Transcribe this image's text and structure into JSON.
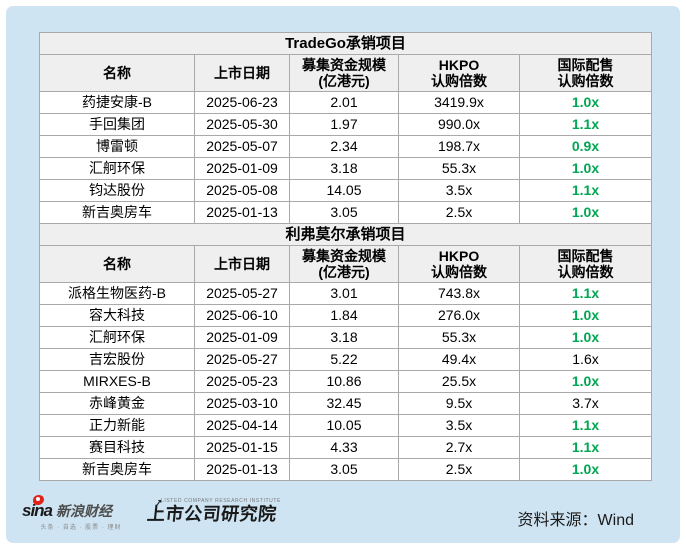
{
  "colors": {
    "panel_background": "#cfe4f2",
    "header_background": "#efefef",
    "border": "#a9a9a9",
    "highlight_green": "#00a651",
    "text": "#000000"
  },
  "chart_data": [
    {
      "type": "table",
      "title": "TradeGo承销项目",
      "columns": [
        "名称",
        "上市日期",
        "募集资金规模\n(亿港元)",
        "HKPO\n认购倍数",
        "国际配售\n认购倍数"
      ],
      "rows": [
        {
          "name": "药捷安康-B",
          "date": "2025-06-23",
          "funds": "2.01",
          "hkpo": "3419.9x",
          "intl": "1.0x",
          "green": true
        },
        {
          "name": "手回集团",
          "date": "2025-05-30",
          "funds": "1.97",
          "hkpo": "990.0x",
          "intl": "1.1x",
          "green": true
        },
        {
          "name": "博雷顿",
          "date": "2025-05-07",
          "funds": "2.34",
          "hkpo": "198.7x",
          "intl": "0.9x",
          "green": true
        },
        {
          "name": "汇舸环保",
          "date": "2025-01-09",
          "funds": "3.18",
          "hkpo": "55.3x",
          "intl": "1.0x",
          "green": true
        },
        {
          "name": "钧达股份",
          "date": "2025-05-08",
          "funds": "14.05",
          "hkpo": "3.5x",
          "intl": "1.1x",
          "green": true
        },
        {
          "name": "新吉奥房车",
          "date": "2025-01-13",
          "funds": "3.05",
          "hkpo": "2.5x",
          "intl": "1.0x",
          "green": true
        }
      ]
    },
    {
      "type": "table",
      "title": "利弗莫尔承销项目",
      "columns": [
        "名称",
        "上市日期",
        "募集资金规模\n(亿港元)",
        "HKPO\n认购倍数",
        "国际配售\n认购倍数"
      ],
      "rows": [
        {
          "name": "派格生物医药-B",
          "date": "2025-05-27",
          "funds": "3.01",
          "hkpo": "743.8x",
          "intl": "1.1x",
          "green": true
        },
        {
          "name": "容大科技",
          "date": "2025-06-10",
          "funds": "1.84",
          "hkpo": "276.0x",
          "intl": "1.0x",
          "green": true
        },
        {
          "name": "汇舸环保",
          "date": "2025-01-09",
          "funds": "3.18",
          "hkpo": "55.3x",
          "intl": "1.0x",
          "green": true
        },
        {
          "name": "吉宏股份",
          "date": "2025-05-27",
          "funds": "5.22",
          "hkpo": "49.4x",
          "intl": "1.6x",
          "green": false
        },
        {
          "name": "MIRXES-B",
          "date": "2025-05-23",
          "funds": "10.86",
          "hkpo": "25.5x",
          "intl": "1.0x",
          "green": true
        },
        {
          "name": "赤峰黄金",
          "date": "2025-03-10",
          "funds": "32.45",
          "hkpo": "9.5x",
          "intl": "3.7x",
          "green": false
        },
        {
          "name": "正力新能",
          "date": "2025-04-14",
          "funds": "10.05",
          "hkpo": "3.5x",
          "intl": "1.1x",
          "green": true
        },
        {
          "name": "赛目科技",
          "date": "2025-01-15",
          "funds": "4.33",
          "hkpo": "2.7x",
          "intl": "1.1x",
          "green": true
        },
        {
          "name": "新吉奥房车",
          "date": "2025-01-13",
          "funds": "3.05",
          "hkpo": "2.5x",
          "intl": "1.0x",
          "green": true
        }
      ]
    }
  ],
  "footer": {
    "sina_logo": {
      "brand": "sina",
      "brand_cn": "新浪财经",
      "tagline": "头条 · 自选 · 股票 · 理财"
    },
    "research_logo": {
      "caption": "LISTED COMPANY RESEARCH INSTITUTE",
      "text": "上市公司研究院",
      "arrow": "↗"
    },
    "source_label": "资料来源：Wind"
  }
}
